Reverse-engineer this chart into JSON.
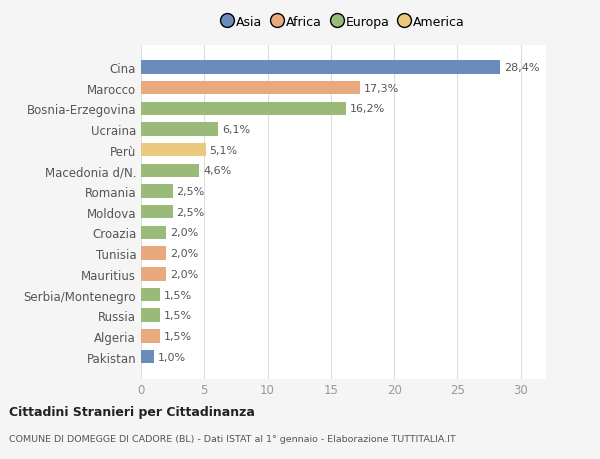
{
  "categories": [
    "Cina",
    "Marocco",
    "Bosnia-Erzegovina",
    "Ucraina",
    "Perù",
    "Macedonia d/N.",
    "Romania",
    "Moldova",
    "Croazia",
    "Tunisia",
    "Mauritius",
    "Serbia/Montenegro",
    "Russia",
    "Algeria",
    "Pakistan"
  ],
  "values": [
    28.4,
    17.3,
    16.2,
    6.1,
    5.1,
    4.6,
    2.5,
    2.5,
    2.0,
    2.0,
    2.0,
    1.5,
    1.5,
    1.5,
    1.0
  ],
  "labels": [
    "28,4%",
    "17,3%",
    "16,2%",
    "6,1%",
    "5,1%",
    "4,6%",
    "2,5%",
    "2,5%",
    "2,0%",
    "2,0%",
    "2,0%",
    "1,5%",
    "1,5%",
    "1,5%",
    "1,0%"
  ],
  "colors": [
    "#6b8cba",
    "#e8a97e",
    "#9aba7a",
    "#9aba7a",
    "#e8c97e",
    "#9aba7a",
    "#9aba7a",
    "#9aba7a",
    "#9aba7a",
    "#e8a97e",
    "#e8a97e",
    "#9aba7a",
    "#9aba7a",
    "#e8a97e",
    "#6b8cba"
  ],
  "legend_labels": [
    "Asia",
    "Africa",
    "Europa",
    "America"
  ],
  "legend_colors": [
    "#6b8cba",
    "#e8a97e",
    "#9aba7a",
    "#e8c97e"
  ],
  "title1": "Cittadini Stranieri per Cittadinanza",
  "title2": "COMUNE DI DOMEGGE DI CADORE (BL) - Dati ISTAT al 1° gennaio - Elaborazione TUTTITALIA.IT",
  "xlim": [
    0,
    32
  ],
  "xticks": [
    0,
    5,
    10,
    15,
    20,
    25,
    30
  ],
  "bg_color": "#f5f5f5",
  "bar_bg_color": "#ffffff",
  "grid_color": "#dddddd"
}
